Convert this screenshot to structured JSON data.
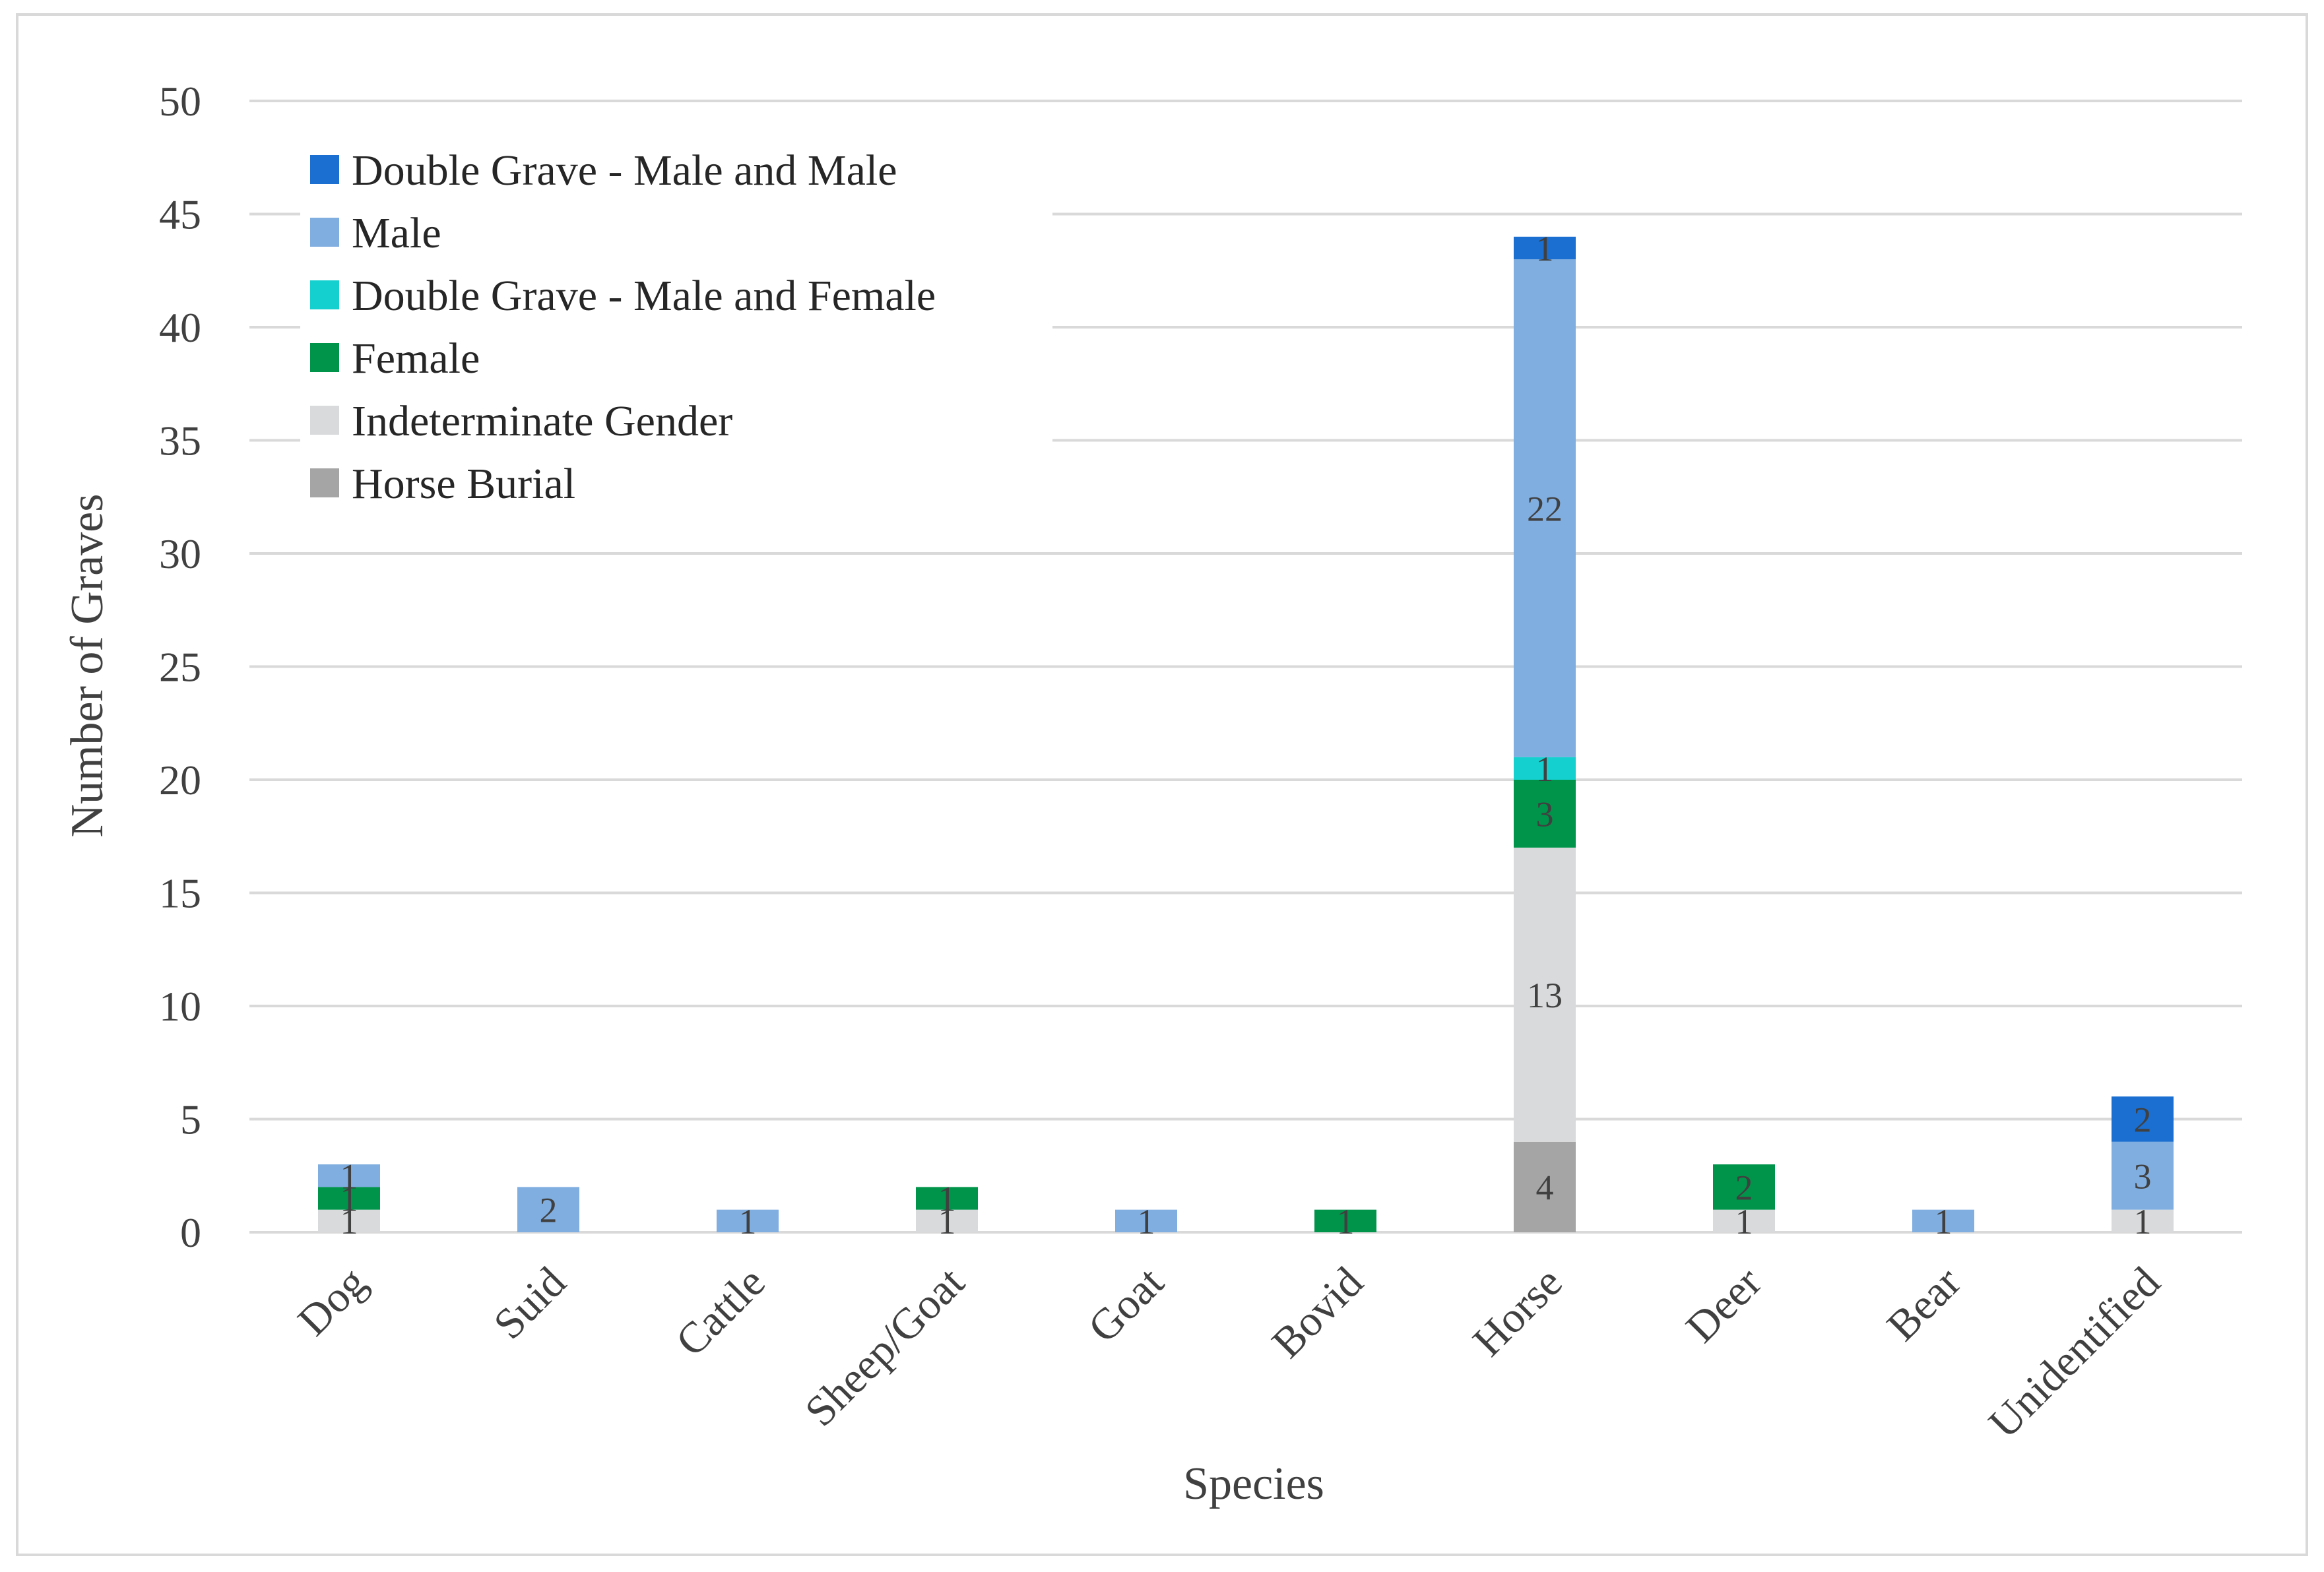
{
  "chart_data": {
    "type": "bar",
    "stacked": true,
    "title": "",
    "xlabel": "Species",
    "ylabel": "Number of Graves",
    "ylim": [
      0,
      50
    ],
    "yticks": [
      0,
      5,
      10,
      15,
      20,
      25,
      30,
      35,
      40,
      45,
      50
    ],
    "categories": [
      "Dog",
      "Suid",
      "Cattle",
      "Sheep/Goat",
      "Goat",
      "Bovid",
      "Horse",
      "Deer",
      "Bear",
      "Unidentified"
    ],
    "series": [
      {
        "name": "Horse Burial",
        "color": "#a5a5a5",
        "values": [
          0,
          0,
          0,
          0,
          0,
          0,
          4,
          0,
          0,
          0
        ]
      },
      {
        "name": "Indeterminate Gender",
        "color": "#d9dadb",
        "values": [
          1,
          0,
          0,
          1,
          0,
          0,
          13,
          1,
          0,
          1
        ]
      },
      {
        "name": "Female",
        "color": "#00944a",
        "values": [
          1,
          0,
          0,
          1,
          0,
          1,
          3,
          2,
          0,
          0
        ]
      },
      {
        "name": "Double Grave - Male and Female",
        "color": "#14d1cf",
        "values": [
          0,
          0,
          0,
          0,
          0,
          0,
          1,
          0,
          0,
          0
        ]
      },
      {
        "name": "Male",
        "color": "#80aee0",
        "values": [
          1,
          2,
          1,
          0,
          1,
          0,
          22,
          0,
          1,
          3
        ]
      },
      {
        "name": "Double Grave - Male and Male",
        "color": "#1a6fd0",
        "values": [
          0,
          0,
          0,
          0,
          0,
          0,
          1,
          0,
          0,
          2
        ]
      }
    ],
    "legend_order": [
      "Double Grave - Male and Male",
      "Male",
      "Double Grave - Male and Female",
      "Female",
      "Indeterminate Gender",
      "Horse Burial"
    ],
    "legend_position": "top-left",
    "grid": true,
    "gridline_color": "#d9d9d9"
  }
}
